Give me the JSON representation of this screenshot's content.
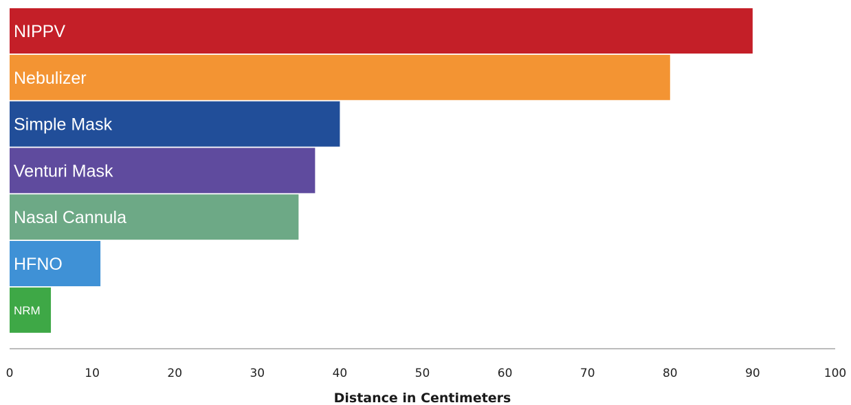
{
  "chart_data": {
    "type": "bar",
    "orientation": "horizontal",
    "categories": [
      "NIPPV",
      "Nebulizer",
      "Simple Mask",
      "Venturi Mask",
      "Nasal Cannula",
      "HFNO",
      "NRM"
    ],
    "values": [
      90,
      80,
      40,
      37,
      35,
      11,
      5
    ],
    "colors": [
      "#c41f28",
      "#f39433",
      "#214e99",
      "#5f4b9e",
      "#6da986",
      "#3f91d6",
      "#3ea846"
    ],
    "xlabel": "Distance in Centimeters",
    "ylabel": "",
    "title": "",
    "xlim": [
      0,
      100
    ],
    "xticks": [
      0,
      10,
      20,
      30,
      40,
      50,
      60,
      70,
      80,
      90,
      100
    ],
    "grid": false,
    "legend": "none",
    "axis_color": "#bbbbbb"
  }
}
